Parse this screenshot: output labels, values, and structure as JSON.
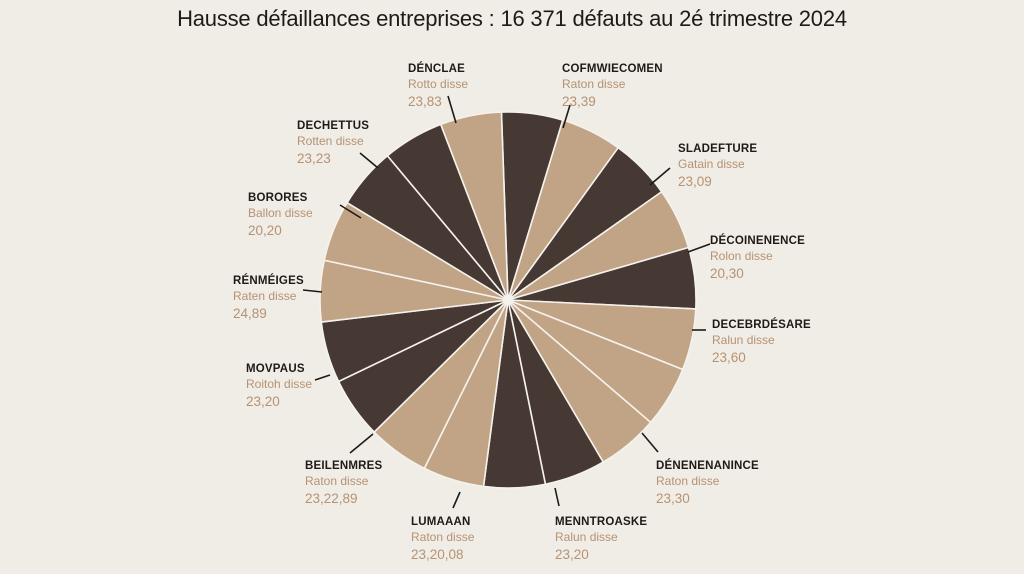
{
  "title": "Hausse défaillances entreprises : 16 371 défauts au 2é trimestre 2024",
  "colors": {
    "dark": "#463833",
    "light": "#c1a386",
    "stroke": "#f5f2ec",
    "leader": "#1e1a17"
  },
  "chart_data": {
    "type": "pie",
    "title": "Hausse défaillances entreprises : 16 371 défauts au 2é trimestre 2024",
    "slices": [
      {
        "color": "dark",
        "value": 1
      },
      {
        "color": "light",
        "value": 1
      },
      {
        "color": "dark",
        "value": 1
      },
      {
        "color": "light",
        "value": 1
      },
      {
        "color": "dark",
        "value": 1
      },
      {
        "color": "light",
        "value": 1
      },
      {
        "color": "light",
        "value": 1
      },
      {
        "color": "light",
        "value": 1
      },
      {
        "color": "dark",
        "value": 1
      },
      {
        "color": "dark",
        "value": 1
      },
      {
        "color": "light",
        "value": 1
      },
      {
        "color": "light",
        "value": 1
      },
      {
        "color": "dark",
        "value": 1
      },
      {
        "color": "dark",
        "value": 1
      },
      {
        "color": "light",
        "value": 1
      },
      {
        "color": "light",
        "value": 1
      },
      {
        "color": "dark",
        "value": 1
      },
      {
        "color": "dark",
        "value": 1
      },
      {
        "color": "light",
        "value": 1
      }
    ],
    "labels": [
      {
        "name": "DÉNCLAE",
        "sub": "Rotto disse",
        "value": "23,83"
      },
      {
        "name": "COFMWIECOMEN",
        "sub": "Raton disse",
        "value": "23,39"
      },
      {
        "name": "SLADEFTURE",
        "sub": "Gatain disse",
        "value": "23,09"
      },
      {
        "name": "DÉCOINENENCE",
        "sub": "Rolon disse",
        "value": "20,30"
      },
      {
        "name": "DECEBRDÉSARE",
        "sub": "Ralun disse",
        "value": "23,60"
      },
      {
        "name": "DÉNENENANINCE",
        "sub": "Raton disse",
        "value": "23,30"
      },
      {
        "name": "MENNTROASKE",
        "sub": "Ralun disse",
        "value": "23,20"
      },
      {
        "name": "LUMAAAN",
        "sub": "Raton disse",
        "value": "23,20,08"
      },
      {
        "name": "BEILENMRES",
        "sub": "Raton disse",
        "value": "23,22,89"
      },
      {
        "name": "MOVPAUS",
        "sub": "Roitoh disse",
        "value": "23,20"
      },
      {
        "name": "RÉNMÉIGES",
        "sub": "Raten disse",
        "value": "24,89"
      },
      {
        "name": "BORORES",
        "sub": "Ballon disse",
        "value": "20,20"
      },
      {
        "name": "DECHETTUS",
        "sub": "Rotten disse",
        "value": "23,23"
      }
    ]
  }
}
